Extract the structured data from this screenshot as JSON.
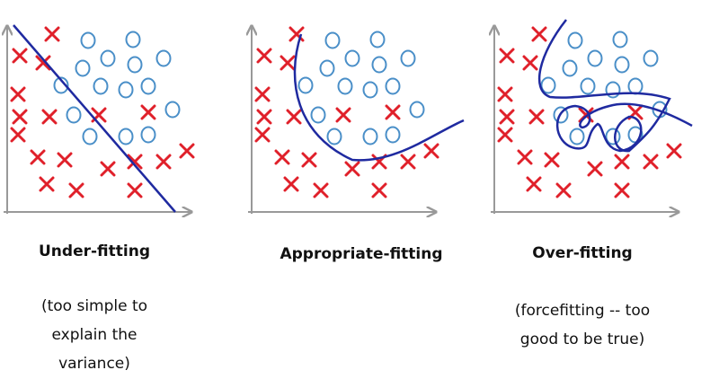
{
  "panels": [
    {
      "title": "Under-fitting",
      "caption": [
        "(too simple to",
        "explain the",
        "variance)"
      ]
    },
    {
      "title": "Appropriate-fitting",
      "caption": []
    },
    {
      "title": "Over-fitting",
      "caption": [
        "(forcefitting -- too",
        "good to be true)"
      ]
    }
  ]
}
